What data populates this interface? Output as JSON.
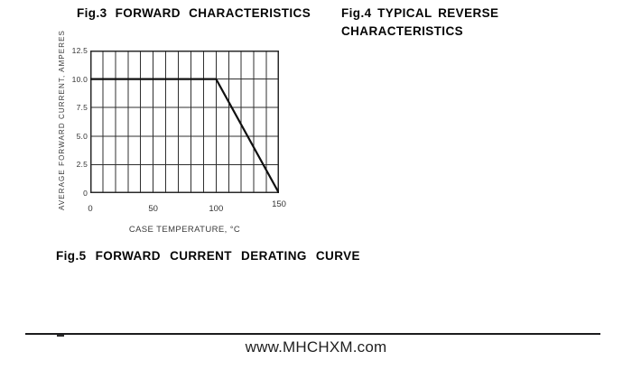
{
  "page": {
    "fig3_title": "Fig.3 FORWARD CHARACTERISTICS",
    "fig4_title_line1": "Fig.4 TYPICAL REVERSE",
    "fig4_title_line2": "CHARACTERISTICS",
    "fig5_caption": "Fig.5 FORWARD CURRENT DERATING CURVE",
    "footer_url": "www.MHCHXM.com"
  },
  "chart_data": {
    "type": "line",
    "title": "Fig.5 FORWARD CURRENT DERATING CURVE",
    "xlabel": "CASE TEMPERATURE, °C",
    "ylabel": "AVERAGE FORWARD CURRENT, AMPERES",
    "xlim": [
      0,
      150
    ],
    "ylim": [
      0,
      12.5
    ],
    "x_grid_step": 10,
    "y_grid_step": 2.5,
    "grid": true,
    "legend": "none",
    "x_tick_values": [
      0,
      50,
      100,
      150
    ],
    "x_tick_labels": [
      "0",
      "50",
      "100",
      "150"
    ],
    "y_tick_values": [
      0,
      2.5,
      5,
      7.5,
      10,
      12.5
    ],
    "y_tick_labels": [
      "0",
      "2.5",
      "5.0",
      "7.5",
      "10.0",
      "12.5"
    ],
    "series": [
      {
        "name": "forward-current-derating",
        "points": [
          [
            0,
            10
          ],
          [
            100,
            10
          ],
          [
            150,
            0
          ]
        ]
      }
    ],
    "colors": {
      "grid": "#2f2f2f",
      "frame": "#2a2a2a",
      "curve": "#101010"
    }
  }
}
